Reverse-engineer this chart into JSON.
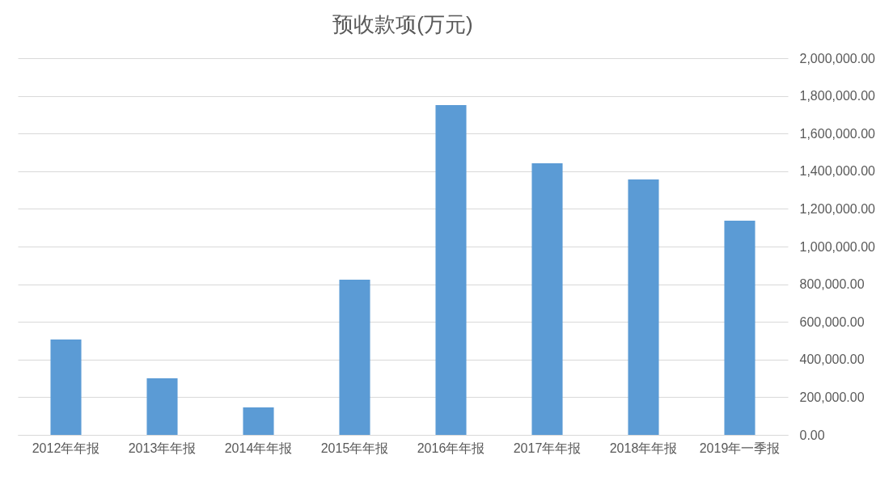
{
  "chart_data": {
    "type": "bar",
    "title": "预收款项(万元)",
    "categories": [
      "2012年年报",
      "2013年年报",
      "2014年年报",
      "2015年年报",
      "2016年年报",
      "2017年年报",
      "2018年年报",
      "2019年一季报"
    ],
    "values": [
      506000,
      300000,
      146000,
      824000,
      1751000,
      1442000,
      1356000,
      1137000
    ],
    "color": "#5b9bd5",
    "ylim": [
      0,
      2000000
    ],
    "yticks": [
      {
        "value": 0,
        "label": "0.00"
      },
      {
        "value": 200000,
        "label": "200,000.00"
      },
      {
        "value": 400000,
        "label": "400,000.00"
      },
      {
        "value": 600000,
        "label": "600,000.00"
      },
      {
        "value": 800000,
        "label": "800,000.00"
      },
      {
        "value": 1000000,
        "label": "1,000,000.00"
      },
      {
        "value": 1200000,
        "label": "1,200,000.00"
      },
      {
        "value": 1400000,
        "label": "1,400,000.00"
      },
      {
        "value": 1600000,
        "label": "1,600,000.00"
      },
      {
        "value": 1800000,
        "label": "1,800,000.00"
      },
      {
        "value": 2000000,
        "label": "2,000,000.00"
      }
    ],
    "grid": "y"
  }
}
